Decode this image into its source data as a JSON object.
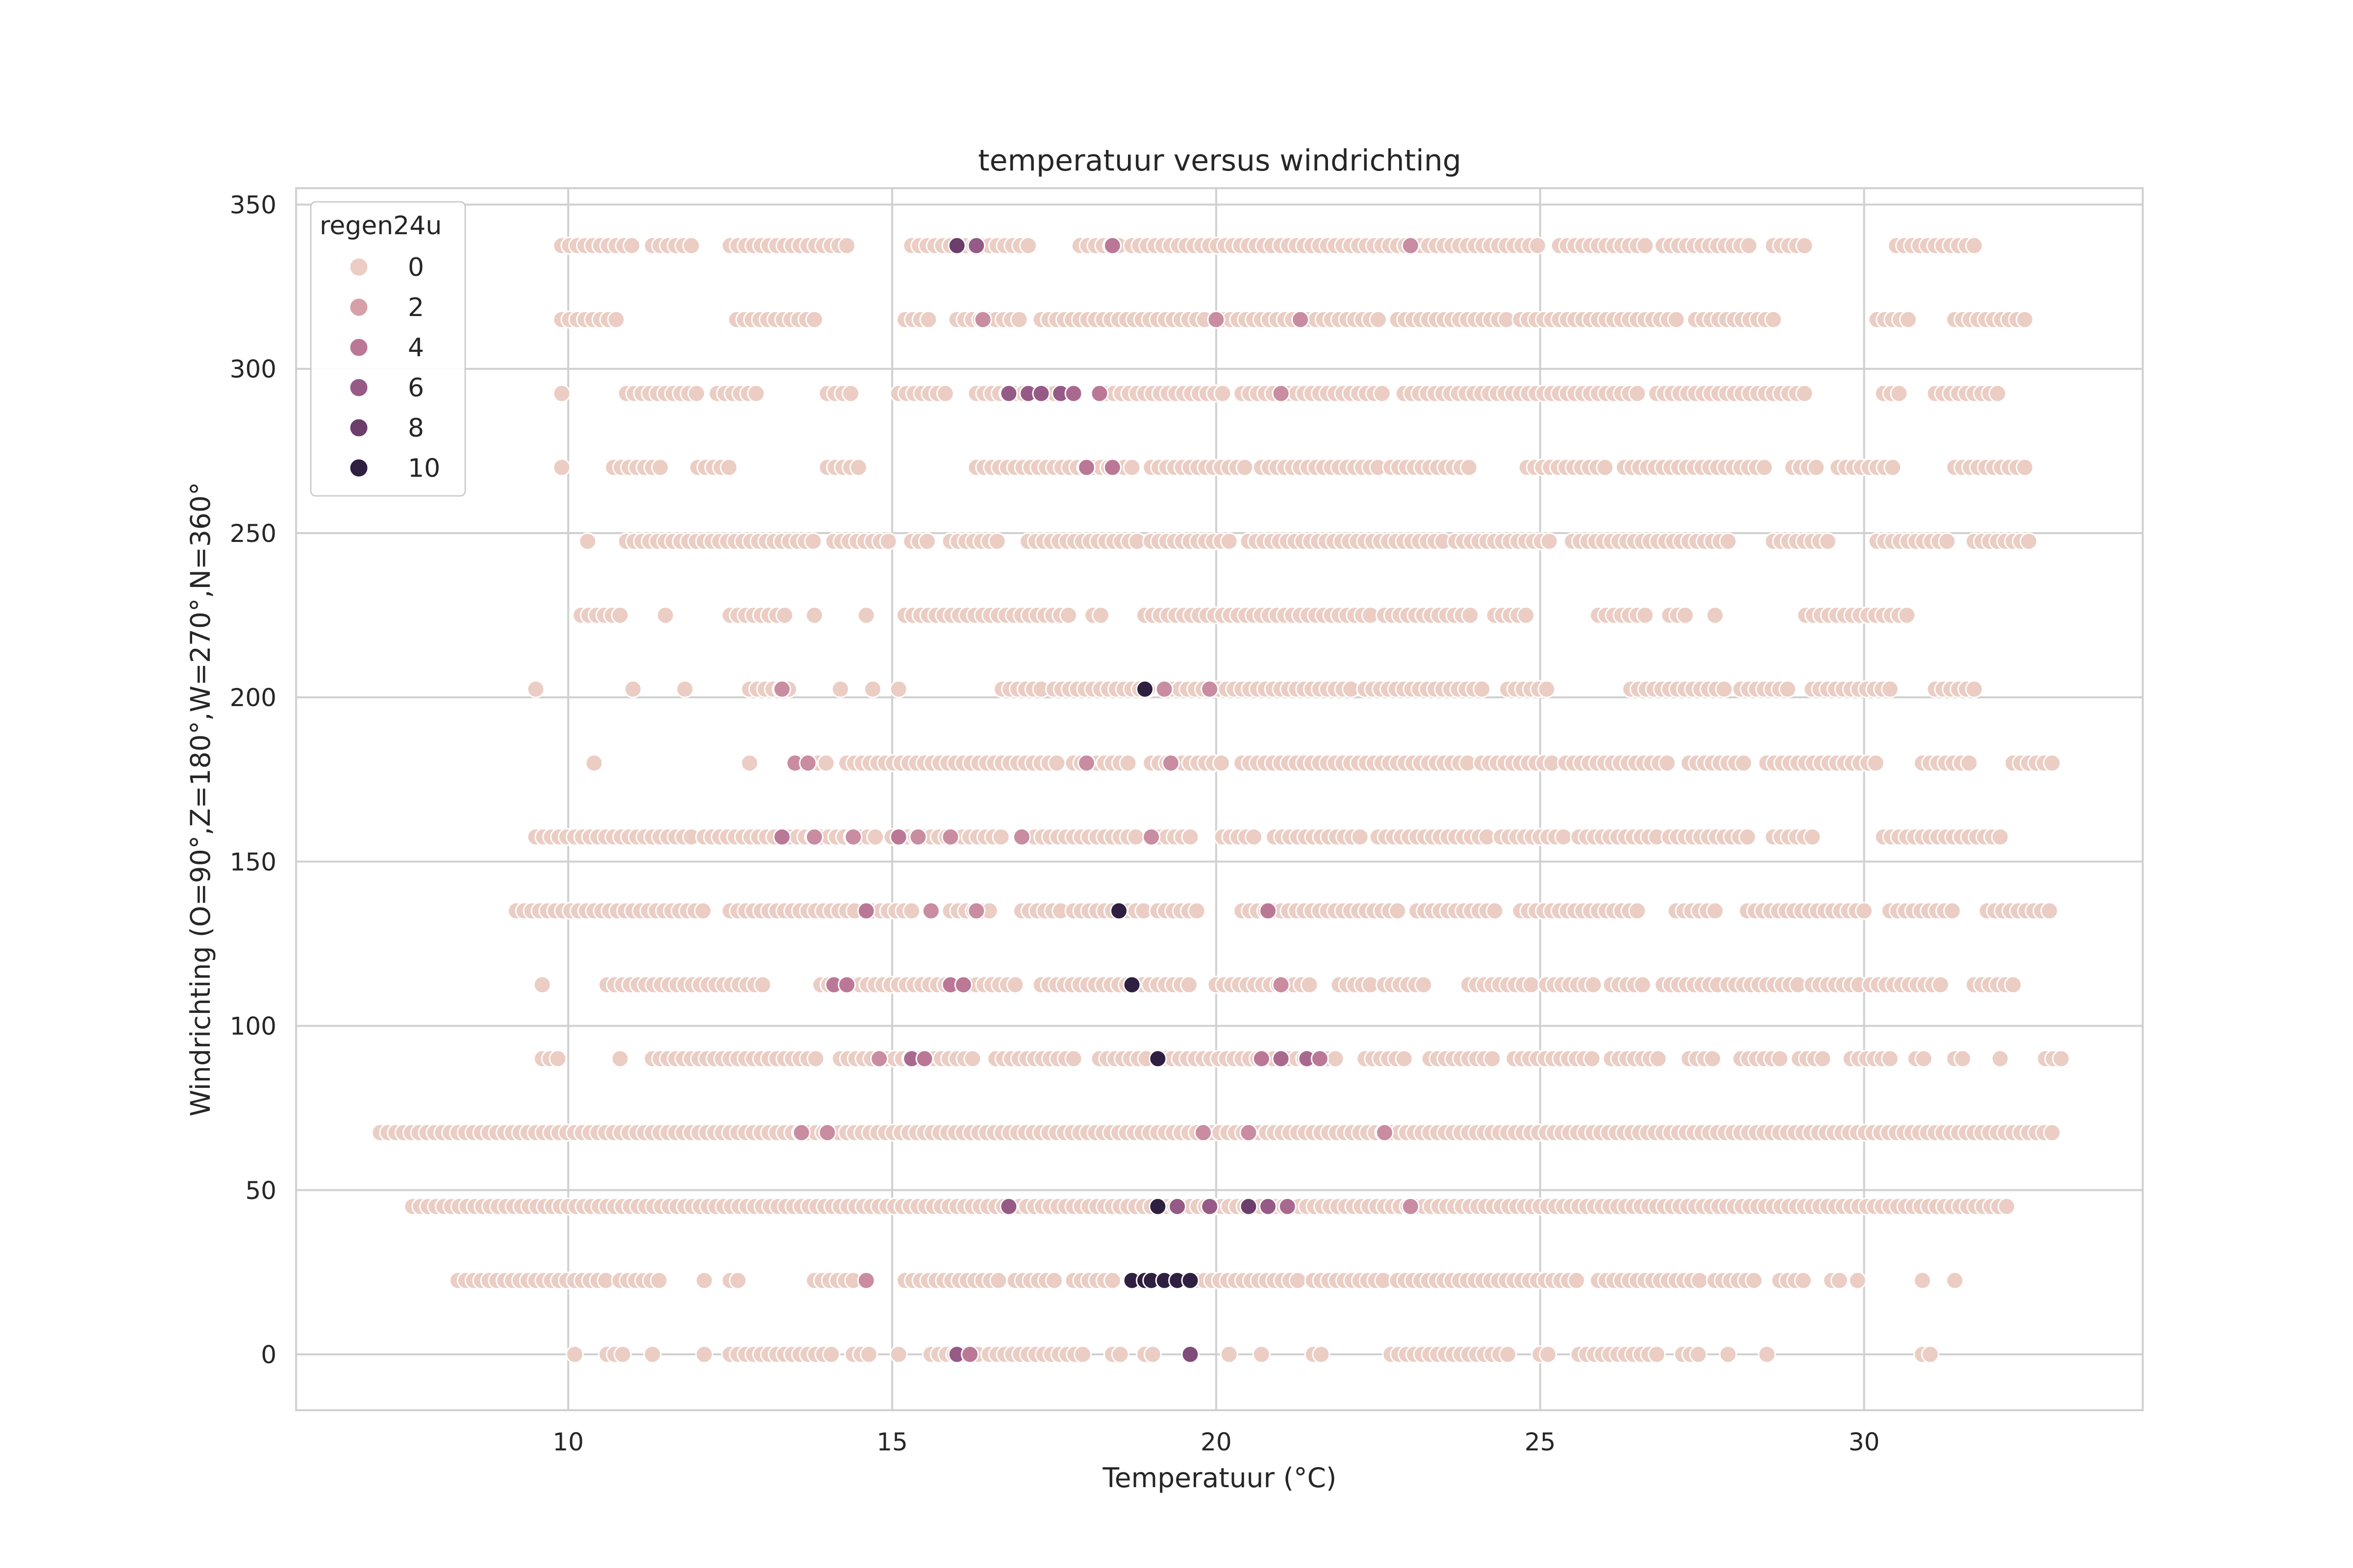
{
  "chart_data": {
    "type": "scatter",
    "title": "temperatuur versus windrichting",
    "xlabel": "Temperatuur (°C)",
    "ylabel": "Windrichting (O=90°,Z=180°,W=270°,N=360°",
    "xlim": [
      5.8,
      34.3
    ],
    "ylim": [
      -17,
      355
    ],
    "xticks": [
      10,
      15,
      20,
      25,
      30
    ],
    "yticks": [
      0,
      50,
      100,
      150,
      200,
      250,
      300,
      350
    ],
    "grid": true,
    "legend": {
      "title": "regen24u",
      "placement": "top-left",
      "entries": [
        {
          "label": "0",
          "color": "#ebcdc4"
        },
        {
          "label": "2",
          "color": "#d6a0a9"
        },
        {
          "label": "4",
          "color": "#bb7896"
        },
        {
          "label": "6",
          "color": "#965a87"
        },
        {
          "label": "8",
          "color": "#6b3e6b"
        },
        {
          "label": "10",
          "color": "#2f1f40"
        }
      ]
    },
    "color_scale": {
      "min": 0,
      "max": 10,
      "stops": [
        "#ebcdc4",
        "#d6a0a9",
        "#bb7896",
        "#965a87",
        "#6b3e6b",
        "#2f1f40"
      ]
    },
    "series": [
      {
        "y": 337.5,
        "ranges": [
          [
            9.9,
            11.0
          ],
          [
            11.3,
            12.0
          ],
          [
            12.5,
            14.4
          ],
          [
            15.3,
            17.2
          ],
          [
            17.9,
            18.5
          ],
          [
            18.7,
            20.9
          ],
          [
            21.0,
            25.0
          ],
          [
            25.3,
            26.7
          ],
          [
            26.9,
            28.3
          ],
          [
            28.6,
            29.1
          ],
          [
            30.5,
            31.8
          ]
        ],
        "wet": [
          [
            16.0,
            8
          ],
          [
            16.3,
            6
          ],
          [
            18.4,
            4
          ],
          [
            23.0,
            3
          ]
        ]
      },
      {
        "y": 315,
        "ranges": [
          [
            9.9,
            10.8
          ],
          [
            12.6,
            13.8
          ],
          [
            15.2,
            15.6
          ],
          [
            16.0,
            17.0
          ],
          [
            17.3,
            19.9
          ],
          [
            20.1,
            22.6
          ],
          [
            22.8,
            24.5
          ],
          [
            24.7,
            27.1
          ],
          [
            27.4,
            28.6
          ],
          [
            30.2,
            30.7
          ],
          [
            31.4,
            32.5
          ]
        ],
        "wet": [
          [
            16.4,
            3
          ],
          [
            20.0,
            3
          ],
          [
            21.3,
            3
          ]
        ]
      },
      {
        "y": 292.5,
        "ranges": [
          [
            9.9,
            10.0
          ],
          [
            10.9,
            12.0
          ],
          [
            12.3,
            13.0
          ],
          [
            14.0,
            14.4
          ],
          [
            15.1,
            15.9
          ],
          [
            16.3,
            17.7
          ],
          [
            18.3,
            20.2
          ],
          [
            20.4,
            22.6
          ],
          [
            22.9,
            26.6
          ],
          [
            26.8,
            29.1
          ],
          [
            30.3,
            30.6
          ],
          [
            31.1,
            32.1
          ]
        ],
        "wet": [
          [
            16.8,
            6
          ],
          [
            17.1,
            6
          ],
          [
            17.3,
            6
          ],
          [
            17.6,
            6
          ],
          [
            17.8,
            5
          ],
          [
            18.2,
            4
          ],
          [
            21.0,
            3
          ]
        ]
      },
      {
        "y": 270,
        "ranges": [
          [
            9.9,
            10.0
          ],
          [
            10.7,
            11.5
          ],
          [
            12.0,
            12.5
          ],
          [
            14.0,
            14.5
          ],
          [
            16.3,
            18.8
          ],
          [
            19.0,
            20.5
          ],
          [
            20.7,
            22.5
          ],
          [
            22.7,
            24.0
          ],
          [
            24.8,
            26.0
          ],
          [
            26.3,
            28.5
          ],
          [
            28.9,
            29.3
          ],
          [
            29.6,
            30.5
          ],
          [
            31.4,
            32.5
          ]
        ],
        "wet": [
          [
            18.0,
            4
          ],
          [
            18.4,
            4
          ]
        ]
      },
      {
        "y": 247.5,
        "ranges": [
          [
            10.3,
            10.4
          ],
          [
            10.9,
            13.8
          ],
          [
            14.1,
            15.0
          ],
          [
            15.3,
            15.6
          ],
          [
            15.9,
            16.7
          ],
          [
            17.1,
            18.8
          ],
          [
            19.0,
            20.3
          ],
          [
            20.5,
            23.5
          ],
          [
            23.7,
            25.2
          ],
          [
            25.5,
            28.0
          ],
          [
            28.6,
            29.5
          ],
          [
            30.2,
            31.3
          ],
          [
            31.7,
            32.6
          ]
        ],
        "wet": []
      },
      {
        "y": 225,
        "ranges": [
          [
            10.2,
            10.8
          ],
          [
            11.5,
            11.5
          ],
          [
            12.5,
            13.4
          ],
          [
            13.8,
            13.8
          ],
          [
            14.6,
            14.6
          ],
          [
            15.2,
            17.8
          ],
          [
            18.1,
            18.3
          ],
          [
            18.9,
            22.4
          ],
          [
            22.6,
            24.0
          ],
          [
            24.3,
            24.8
          ],
          [
            25.9,
            26.7
          ],
          [
            27.0,
            27.3
          ],
          [
            27.7,
            27.7
          ],
          [
            29.1,
            30.7
          ]
        ],
        "wet": []
      },
      {
        "y": 202.5,
        "ranges": [
          [
            9.5,
            9.6
          ],
          [
            11.0,
            11.0
          ],
          [
            11.8,
            11.8
          ],
          [
            12.8,
            13.4
          ],
          [
            14.2,
            14.2
          ],
          [
            14.7,
            14.8
          ],
          [
            15.1,
            15.2
          ],
          [
            16.7,
            17.3
          ],
          [
            17.5,
            19.0
          ],
          [
            19.2,
            22.1
          ],
          [
            22.3,
            24.1
          ],
          [
            24.5,
            25.1
          ],
          [
            26.4,
            27.9
          ],
          [
            28.1,
            28.9
          ],
          [
            29.2,
            30.5
          ],
          [
            31.1,
            31.8
          ]
        ],
        "wet": [
          [
            13.3,
            3
          ],
          [
            18.9,
            10
          ],
          [
            19.2,
            3
          ],
          [
            19.9,
            3
          ]
        ]
      },
      {
        "y": 180,
        "ranges": [
          [
            10.4,
            10.5
          ],
          [
            12.8,
            12.8
          ],
          [
            13.5,
            14.0
          ],
          [
            14.3,
            17.6
          ],
          [
            17.8,
            18.7
          ],
          [
            19.0,
            20.1
          ],
          [
            20.4,
            23.9
          ],
          [
            24.1,
            25.2
          ],
          [
            25.4,
            27.0
          ],
          [
            27.3,
            28.2
          ],
          [
            28.5,
            30.2
          ],
          [
            30.9,
            31.7
          ],
          [
            32.3,
            32.9
          ]
        ],
        "wet": [
          [
            13.5,
            3
          ],
          [
            13.7,
            3
          ],
          [
            18.0,
            3
          ],
          [
            19.3,
            3
          ]
        ]
      },
      {
        "y": 157.5,
        "ranges": [
          [
            9.5,
            12.0
          ],
          [
            12.1,
            14.8
          ],
          [
            15.0,
            16.7
          ],
          [
            17.2,
            18.8
          ],
          [
            19.0,
            19.6
          ],
          [
            20.1,
            20.6
          ],
          [
            20.9,
            22.3
          ],
          [
            22.5,
            24.2
          ],
          [
            24.4,
            25.4
          ],
          [
            25.6,
            26.8
          ],
          [
            27.0,
            28.2
          ],
          [
            28.6,
            29.3
          ],
          [
            30.3,
            32.1
          ]
        ],
        "wet": [
          [
            13.3,
            4
          ],
          [
            13.8,
            3
          ],
          [
            14.4,
            3
          ],
          [
            15.1,
            4
          ],
          [
            15.4,
            3
          ],
          [
            15.9,
            3
          ],
          [
            17.0,
            3
          ],
          [
            19.0,
            3
          ]
        ]
      },
      {
        "y": 135,
        "ranges": [
          [
            9.2,
            10.3
          ],
          [
            10.4,
            12.1
          ],
          [
            12.5,
            14.5
          ],
          [
            14.7,
            15.4
          ],
          [
            15.9,
            16.5
          ],
          [
            17.0,
            17.6
          ],
          [
            17.8,
            18.9
          ],
          [
            19.1,
            19.8
          ],
          [
            20.4,
            22.8
          ],
          [
            23.1,
            24.4
          ],
          [
            24.7,
            26.6
          ],
          [
            27.1,
            27.8
          ],
          [
            28.2,
            30.1
          ],
          [
            30.4,
            31.4
          ],
          [
            31.9,
            32.9
          ]
        ],
        "wet": [
          [
            14.6,
            4
          ],
          [
            15.6,
            3
          ],
          [
            16.3,
            3
          ],
          [
            18.5,
            10
          ],
          [
            20.8,
            4
          ]
        ]
      },
      {
        "y": 112.5,
        "ranges": [
          [
            9.6,
            9.6
          ],
          [
            10.6,
            13.0
          ],
          [
            13.9,
            17.0
          ],
          [
            17.3,
            19.6
          ],
          [
            20.0,
            21.5
          ],
          [
            21.9,
            22.4
          ],
          [
            22.6,
            23.3
          ],
          [
            23.9,
            24.9
          ],
          [
            25.1,
            25.9
          ],
          [
            26.1,
            26.6
          ],
          [
            26.9,
            27.8
          ],
          [
            27.9,
            29.0
          ],
          [
            29.2,
            30.0
          ],
          [
            30.1,
            31.2
          ],
          [
            31.7,
            32.3
          ]
        ],
        "wet": [
          [
            14.1,
            4
          ],
          [
            14.3,
            4
          ],
          [
            15.9,
            4
          ],
          [
            16.1,
            4
          ],
          [
            18.7,
            10
          ],
          [
            21.0,
            3
          ]
        ]
      },
      {
        "y": 90,
        "ranges": [
          [
            9.6,
            9.9
          ],
          [
            10.8,
            10.8
          ],
          [
            11.3,
            13.9
          ],
          [
            14.2,
            16.3
          ],
          [
            16.6,
            17.8
          ],
          [
            18.2,
            19.0
          ],
          [
            19.2,
            21.9
          ],
          [
            22.3,
            23.0
          ],
          [
            23.3,
            24.3
          ],
          [
            24.6,
            25.8
          ],
          [
            26.1,
            26.9
          ],
          [
            27.3,
            27.7
          ],
          [
            28.1,
            28.7
          ],
          [
            29.0,
            29.4
          ],
          [
            29.8,
            30.4
          ],
          [
            30.8,
            31.0
          ],
          [
            31.4,
            31.6
          ],
          [
            32.1,
            32.2
          ],
          [
            32.8,
            33.1
          ]
        ],
        "wet": [
          [
            14.8,
            3
          ],
          [
            15.3,
            5
          ],
          [
            15.5,
            4
          ],
          [
            19.1,
            10
          ],
          [
            20.7,
            4
          ],
          [
            21.0,
            5
          ],
          [
            21.4,
            5
          ],
          [
            21.6,
            4
          ]
        ]
      },
      {
        "y": 67.5,
        "ranges": [
          [
            7.1,
            32.9
          ]
        ],
        "wet": [
          [
            13.6,
            3
          ],
          [
            14.0,
            3
          ],
          [
            19.8,
            3
          ],
          [
            20.5,
            3
          ],
          [
            22.6,
            3
          ]
        ]
      },
      {
        "y": 45,
        "ranges": [
          [
            7.6,
            32.3
          ]
        ],
        "wet": [
          [
            16.8,
            6
          ],
          [
            19.1,
            10
          ],
          [
            19.4,
            6
          ],
          [
            19.9,
            6
          ],
          [
            20.5,
            8
          ],
          [
            20.8,
            6
          ],
          [
            21.1,
            5
          ],
          [
            23.0,
            3
          ]
        ]
      },
      {
        "y": 22.5,
        "ranges": [
          [
            8.3,
            10.6
          ],
          [
            10.8,
            11.4
          ],
          [
            12.1,
            12.1
          ],
          [
            12.5,
            12.7
          ],
          [
            13.8,
            14.4
          ],
          [
            14.6,
            14.6
          ],
          [
            15.2,
            16.7
          ],
          [
            16.9,
            17.5
          ],
          [
            17.8,
            18.4
          ],
          [
            18.8,
            19.5
          ],
          [
            19.7,
            21.3
          ],
          [
            21.5,
            22.6
          ],
          [
            22.8,
            25.6
          ],
          [
            25.9,
            27.5
          ],
          [
            27.7,
            28.4
          ],
          [
            28.7,
            29.1
          ],
          [
            29.5,
            29.7
          ],
          [
            29.9,
            30.0
          ],
          [
            30.9,
            31.0
          ],
          [
            31.4,
            31.4
          ]
        ],
        "wet": [
          [
            14.6,
            3
          ],
          [
            18.7,
            10
          ],
          [
            18.9,
            10
          ],
          [
            19.0,
            10
          ],
          [
            19.2,
            10
          ],
          [
            19.4,
            10
          ],
          [
            19.6,
            10
          ]
        ]
      },
      {
        "y": 0,
        "ranges": [
          [
            10.1,
            10.2
          ],
          [
            10.6,
            10.9
          ],
          [
            11.3,
            11.3
          ],
          [
            12.1,
            12.2
          ],
          [
            12.5,
            14.1
          ],
          [
            14.4,
            14.7
          ],
          [
            15.1,
            15.1
          ],
          [
            15.6,
            16.4
          ],
          [
            16.5,
            18.0
          ],
          [
            18.4,
            18.6
          ],
          [
            18.9,
            19.1
          ],
          [
            20.2,
            20.2
          ],
          [
            20.7,
            20.7
          ],
          [
            21.5,
            21.7
          ],
          [
            22.7,
            24.6
          ],
          [
            25.0,
            25.2
          ],
          [
            25.6,
            26.8
          ],
          [
            27.2,
            27.5
          ],
          [
            27.9,
            27.9
          ],
          [
            28.5,
            28.5
          ],
          [
            30.9,
            31.1
          ]
        ],
        "wet": [
          [
            16.0,
            6
          ],
          [
            16.2,
            4
          ],
          [
            19.6,
            7
          ]
        ]
      }
    ]
  }
}
